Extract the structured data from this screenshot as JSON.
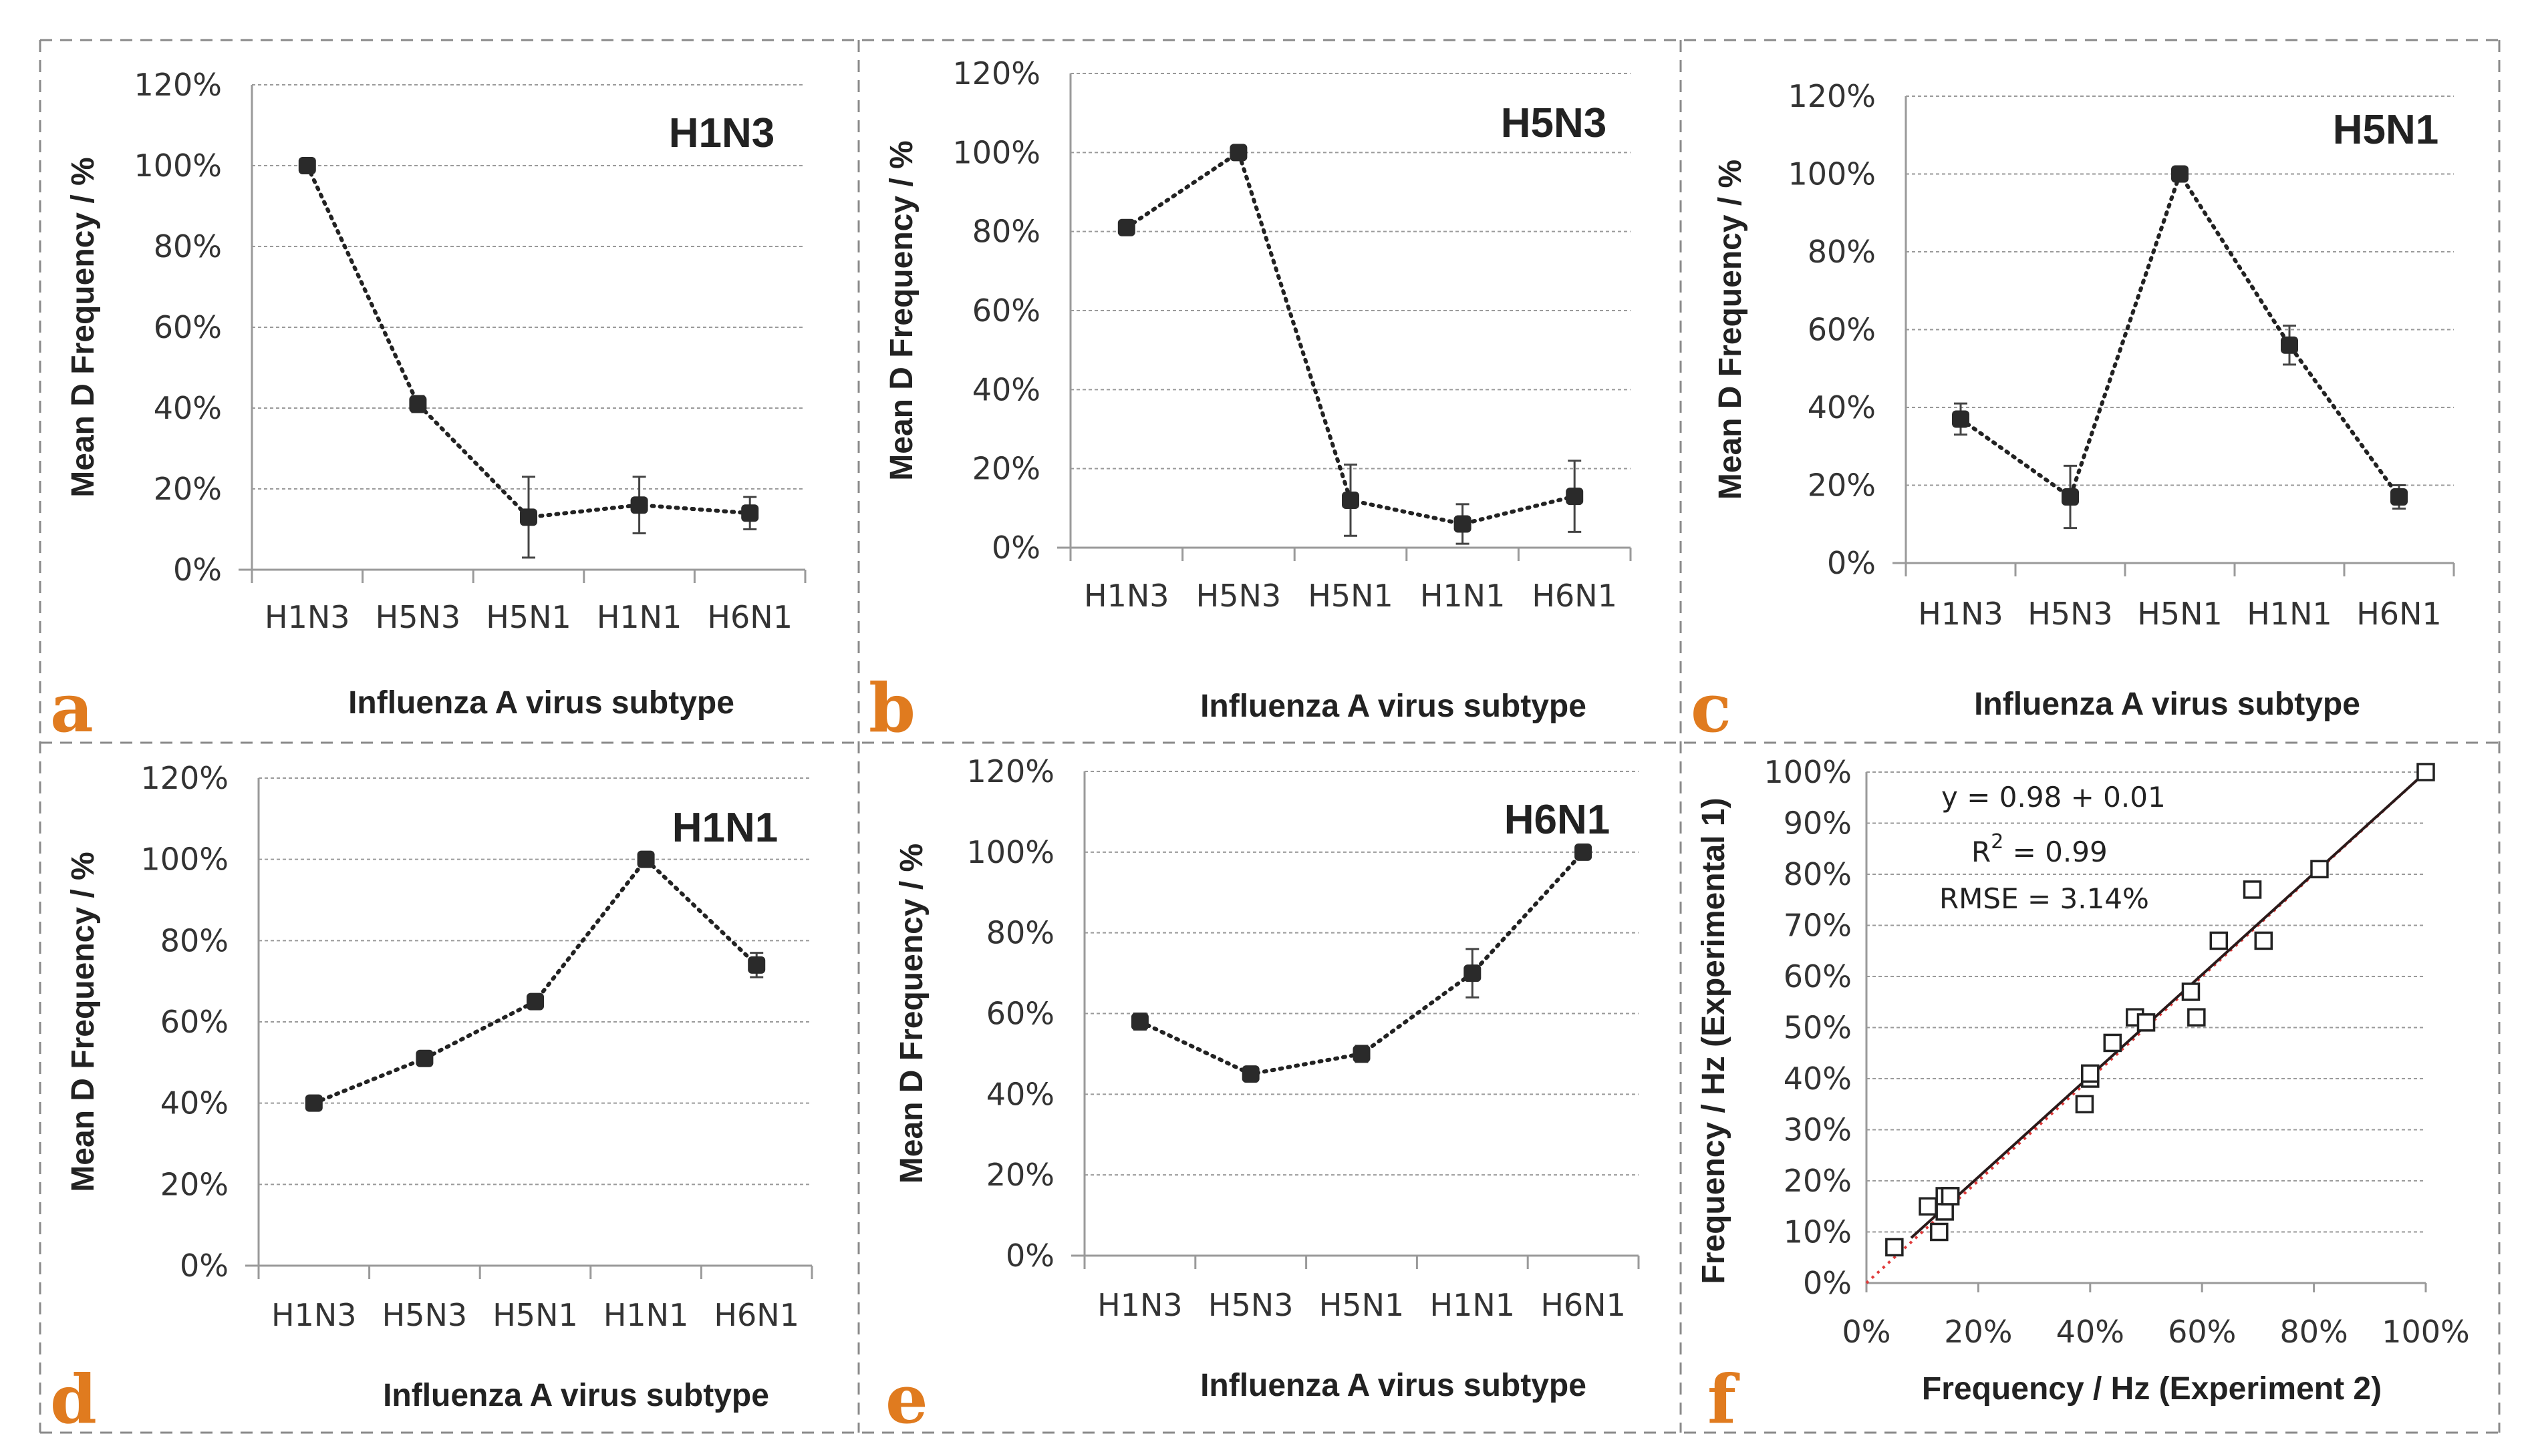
{
  "colors": {
    "panel_letter": "#e07b1f",
    "line": "#222222",
    "marker": "#2a2a2a",
    "fit_line": "#2a1a1a",
    "identity_line": "#e03a3a",
    "grid": "#9a9a9a"
  },
  "chart_data": [
    {
      "panel": "a",
      "type": "line",
      "title": "H1N3",
      "xlabel": "Influenza A virus subtype",
      "ylabel": "Mean D Frequency / %",
      "categories": [
        "H1N3",
        "H5N3",
        "H5N1",
        "H1N1",
        "H6N1"
      ],
      "ylim": [
        0,
        120
      ],
      "yticks": [
        "0%",
        "20%",
        "40%",
        "60%",
        "80%",
        "100%",
        "120%"
      ],
      "values": [
        100,
        41,
        13,
        16,
        14
      ],
      "errors": [
        1,
        2,
        10,
        7,
        4
      ],
      "grid": true
    },
    {
      "panel": "b",
      "type": "line",
      "title": "H5N3",
      "xlabel": "Influenza A virus subtype",
      "ylabel": "Mean D Frequency / %",
      "categories": [
        "H1N3",
        "H5N3",
        "H5N1",
        "H1N1",
        "H6N1"
      ],
      "ylim": [
        0,
        120
      ],
      "yticks": [
        "0%",
        "20%",
        "40%",
        "60%",
        "80%",
        "100%",
        "120%"
      ],
      "values": [
        81,
        100,
        12,
        6,
        13
      ],
      "errors": [
        1,
        1,
        9,
        5,
        9
      ],
      "grid": true
    },
    {
      "panel": "c",
      "type": "line",
      "title": "H5N1",
      "xlabel": "Influenza A virus subtype",
      "ylabel": "Mean D Frequency / %",
      "categories": [
        "H1N3",
        "H5N3",
        "H5N1",
        "H1N1",
        "H6N1"
      ],
      "ylim": [
        0,
        120
      ],
      "yticks": [
        "0%",
        "20%",
        "40%",
        "60%",
        "80%",
        "100%",
        "120%"
      ],
      "values": [
        37,
        17,
        100,
        56,
        17
      ],
      "errors": [
        4,
        8,
        1,
        5,
        3
      ],
      "grid": true
    },
    {
      "panel": "d",
      "type": "line",
      "title": "H1N1",
      "xlabel": "Influenza A virus subtype",
      "ylabel": "Mean D Frequency / %",
      "categories": [
        "H1N3",
        "H5N3",
        "H5N1",
        "H1N1",
        "H6N1"
      ],
      "ylim": [
        0,
        120
      ],
      "yticks": [
        "0%",
        "20%",
        "40%",
        "60%",
        "80%",
        "100%",
        "120%"
      ],
      "values": [
        40,
        51,
        65,
        100,
        74
      ],
      "errors": [
        1,
        1,
        1,
        1,
        3
      ],
      "grid": true
    },
    {
      "panel": "e",
      "type": "line",
      "title": "H6N1",
      "xlabel": "Influenza A virus subtype",
      "ylabel": "Mean D Frequency / %",
      "categories": [
        "H1N3",
        "H5N3",
        "H5N1",
        "H1N1",
        "H6N1"
      ],
      "ylim": [
        0,
        120
      ],
      "yticks": [
        "0%",
        "20%",
        "40%",
        "60%",
        "80%",
        "100%",
        "120%"
      ],
      "values": [
        58,
        45,
        50,
        70,
        100
      ],
      "errors": [
        2,
        1,
        2,
        6,
        1
      ],
      "grid": true
    },
    {
      "panel": "f",
      "type": "scatter",
      "xlabel": "Frequency / Hz (Experiment 2)",
      "ylabel": "Frequency / Hz (Experimental 1)",
      "xlim": [
        0,
        100
      ],
      "ylim": [
        0,
        100
      ],
      "xticks": [
        "0%",
        "20%",
        "40%",
        "60%",
        "80%",
        "100%"
      ],
      "yticks": [
        "0%",
        "10%",
        "20%",
        "30%",
        "40%",
        "50%",
        "60%",
        "70%",
        "80%",
        "90%",
        "100%"
      ],
      "x": [
        5,
        11,
        13,
        14,
        14,
        15,
        15,
        39,
        40,
        40,
        44,
        48,
        50,
        58,
        59,
        63,
        69,
        71,
        81,
        100
      ],
      "y": [
        7,
        15,
        10,
        14,
        17,
        17,
        17,
        35,
        40,
        41,
        47,
        52,
        51,
        57,
        52,
        67,
        77,
        67,
        81,
        100
      ],
      "fit_line": {
        "intercept": 0.01,
        "slope": 0.98
      },
      "annotations": {
        "equation": "y = 0.98 + 0.01",
        "r2_label": "R",
        "r2_sup": "2",
        "r2_value": " = 0.99",
        "rmse": "RMSE = 3.14%"
      },
      "grid": true
    }
  ]
}
